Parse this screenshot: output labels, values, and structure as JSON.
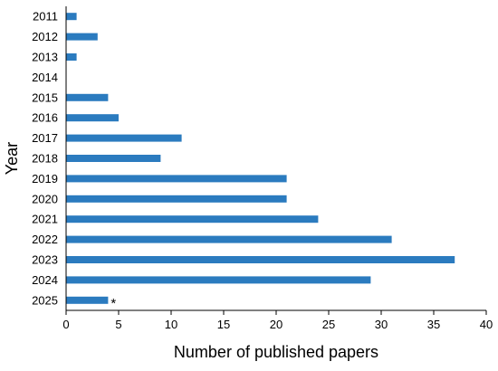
{
  "chart_data": {
    "type": "bar",
    "orientation": "horizontal",
    "categories": [
      "2011",
      "2012",
      "2013",
      "2014",
      "2015",
      "2016",
      "2017",
      "2018",
      "2019",
      "2020",
      "2021",
      "2022",
      "2023",
      "2024",
      "2025"
    ],
    "values": [
      1,
      3,
      1,
      0,
      4,
      5,
      11,
      9,
      21,
      21,
      24,
      31,
      37,
      29,
      4
    ],
    "xlabel": "Number of published papers",
    "ylabel": "Year",
    "xlim": [
      0,
      40
    ],
    "xticks": [
      0,
      5,
      10,
      15,
      20,
      25,
      30,
      35,
      40
    ],
    "grid": false,
    "bar_color": "#2b7bbf",
    "annotations": [
      {
        "category": "2025",
        "text": "*"
      }
    ]
  }
}
